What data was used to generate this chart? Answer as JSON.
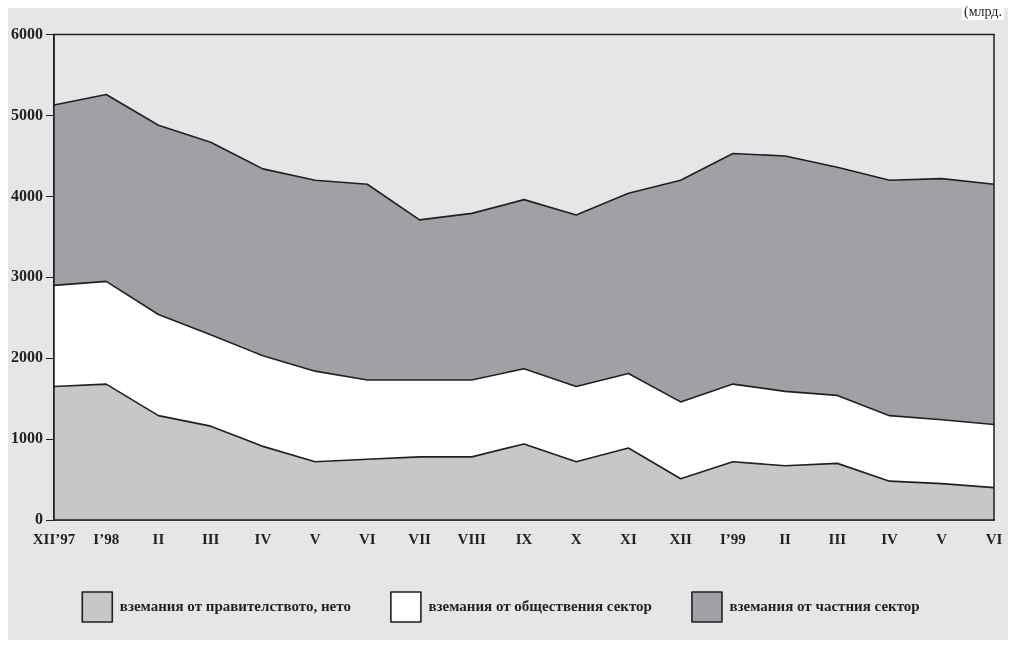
{
  "chart_data": {
    "type": "area",
    "stacked": true,
    "categories": [
      "XII’97",
      "I’98",
      "II",
      "III",
      "IV",
      "V",
      "VI",
      "VII",
      "VIII",
      "IX",
      "X",
      "XI",
      "XII",
      "I’99",
      "II",
      "III",
      "IV",
      "V",
      "VI"
    ],
    "series": [
      {
        "name": "вземания от правителството, нето",
        "color": "#c6c7c9",
        "values": [
          1650,
          1680,
          1290,
          1160,
          910,
          720,
          750,
          780,
          780,
          940,
          720,
          890,
          510,
          720,
          670,
          700,
          480,
          450,
          400
        ]
      },
      {
        "name": "вземания от обществения сектор",
        "color": "#ffffff",
        "values": [
          1250,
          1270,
          1250,
          1130,
          1120,
          1120,
          980,
          950,
          950,
          930,
          930,
          920,
          950,
          960,
          920,
          840,
          810,
          790,
          780
        ]
      },
      {
        "name": "вземания от частния сектор",
        "color": "#a0a1a5",
        "values": [
          2230,
          2310,
          2340,
          2380,
          2310,
          2360,
          2420,
          1980,
          2060,
          2090,
          2120,
          2230,
          2740,
          2850,
          2910,
          2820,
          2910,
          2980,
          2970
        ]
      }
    ],
    "ylim": [
      0,
      6000
    ],
    "yticks": [
      0,
      1000,
      2000,
      3000,
      4000,
      5000,
      6000
    ],
    "grid": false,
    "legend": "bottom",
    "annotations": [
      "(млрд."
    ]
  }
}
